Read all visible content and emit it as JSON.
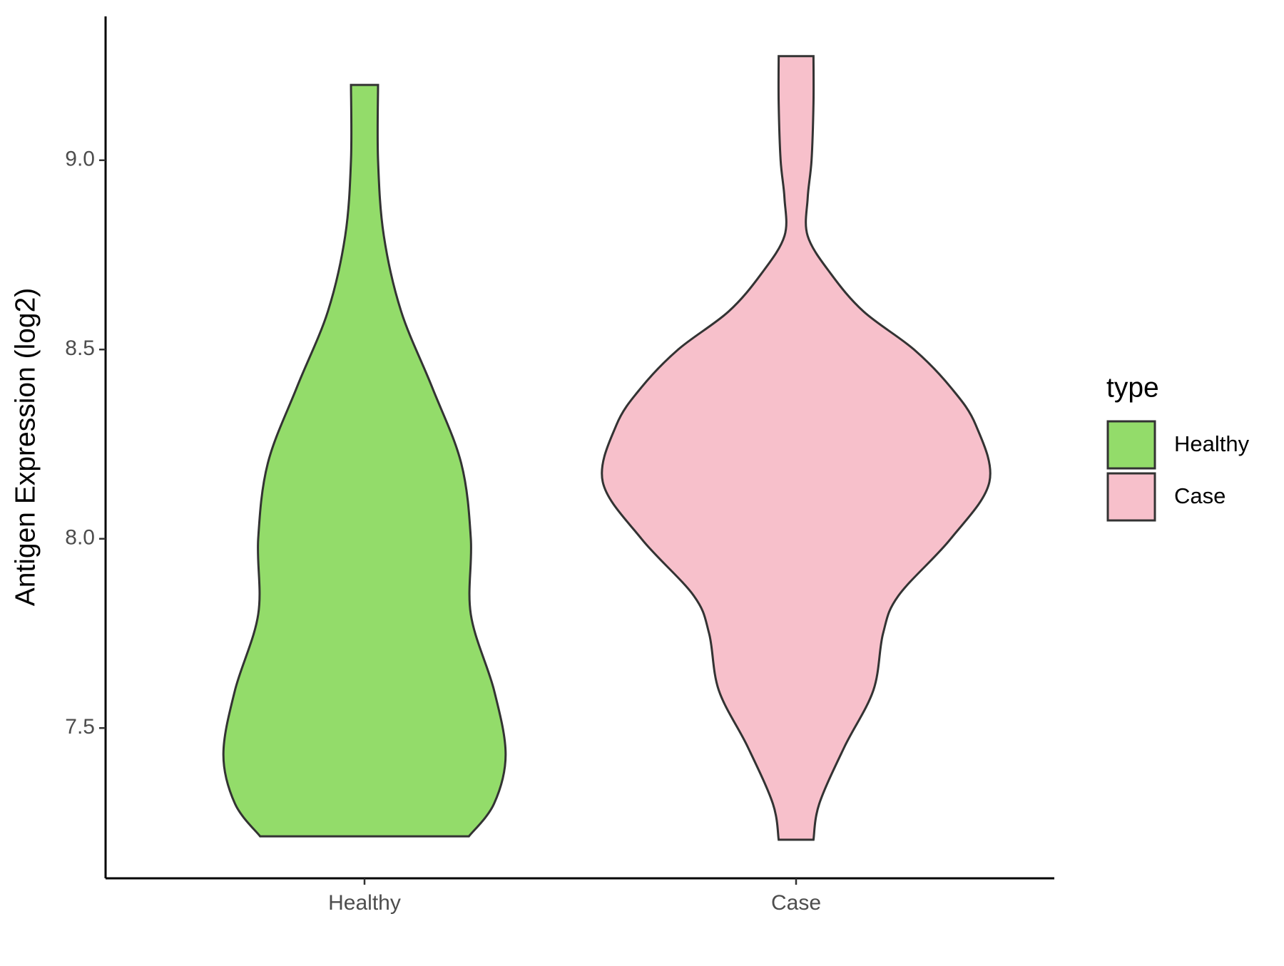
{
  "chart_data": {
    "type": "violin",
    "y_label": "Antigen Expression (log2)",
    "categories": [
      "Healthy",
      "Case"
    ],
    "ylim": [
      7.103,
      9.38
    ],
    "yticks": [
      {
        "value": 7.5,
        "label": "7.5"
      },
      {
        "value": 8,
        "label": "8.0"
      },
      {
        "value": 8.5,
        "label": "8.5"
      },
      {
        "value": 9,
        "label": "9.0"
      }
    ],
    "legend_title": "type",
    "legend_position": "right",
    "series": [
      {
        "name": "Healthy",
        "color": "#93dc6a",
        "y": [
          7.214,
          7.3,
          7.43,
          7.6,
          7.8,
          8.0,
          8.2,
          8.4,
          8.6,
          8.8,
          9.0,
          9.199
        ],
        "width": [
          0.54,
          0.67,
          0.73,
          0.67,
          0.55,
          0.55,
          0.5,
          0.35,
          0.19,
          0.1,
          0.07,
          0.07
        ]
      },
      {
        "name": "Case",
        "color": "#f7c0cb",
        "y": [
          7.205,
          7.3,
          7.45,
          7.6,
          7.75,
          7.85,
          8.0,
          8.15,
          8.3,
          8.4,
          8.5,
          8.6,
          8.7,
          8.8,
          8.9,
          9.0,
          9.15,
          9.275
        ],
        "width": [
          0.09,
          0.12,
          0.25,
          0.4,
          0.45,
          0.53,
          0.8,
          1.0,
          0.93,
          0.8,
          0.61,
          0.35,
          0.18,
          0.06,
          0.06,
          0.08,
          0.09,
          0.09
        ]
      }
    ]
  }
}
